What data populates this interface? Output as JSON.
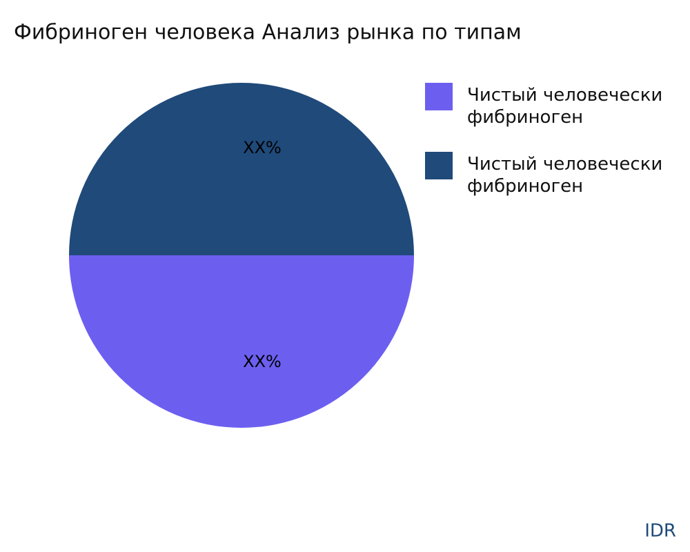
{
  "chart_data": {
    "type": "pie",
    "title": "Фибриноген человека Анализ рынка по типам",
    "categories": [
      "Чистый человечески фибриноген",
      "Чистый человечески фибриноген"
    ],
    "values": [
      50,
      50
    ],
    "value_labels": [
      "XX%",
      "XX%"
    ],
    "colors": [
      "#6c5ff0",
      "#1f4a7a"
    ],
    "legend": "top-right",
    "watermark": "IDR"
  }
}
